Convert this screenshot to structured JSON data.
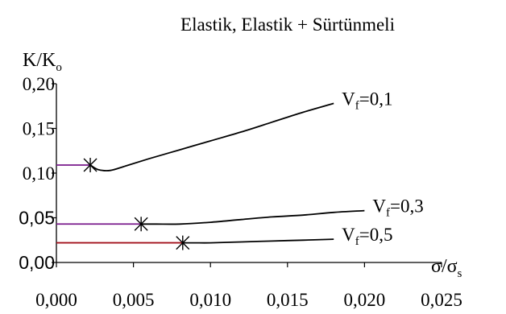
{
  "chart_data": {
    "type": "line",
    "title": "Elastik, Elastik + Sürtünmeli",
    "ylabel": {
      "main": "K/K",
      "sub": "o"
    },
    "xlabel": {
      "numerator": "σ/σ",
      "numerator_sub": "s"
    },
    "xlim": [
      0,
      0.025
    ],
    "ylim": [
      0,
      0.2
    ],
    "x_ticks": [
      {
        "value": 0.0,
        "label": "0,000"
      },
      {
        "value": 0.005,
        "label": "0,005"
      },
      {
        "value": 0.01,
        "label": "0,010"
      },
      {
        "value": 0.015,
        "label": "0,015"
      },
      {
        "value": 0.02,
        "label": "0,020"
      },
      {
        "value": 0.025,
        "label": "0,025"
      }
    ],
    "y_ticks": [
      {
        "value": 0.0,
        "label": "0,00"
      },
      {
        "value": 0.05,
        "label": "0,05"
      },
      {
        "value": 0.1,
        "label": "0,10"
      },
      {
        "value": 0.15,
        "label": "0,15"
      },
      {
        "value": 0.2,
        "label": "0,20"
      }
    ],
    "series": [
      {
        "label_main": "V",
        "label_sub": "f",
        "label_rest": "=0,1",
        "initial_color": "#7a1a8c",
        "initial_segment": [
          [
            0.0,
            0.109
          ],
          [
            0.0022,
            0.109
          ]
        ],
        "marker": [
          0.0022,
          0.109
        ],
        "curve": [
          [
            0.0022,
            0.109
          ],
          [
            0.0027,
            0.104
          ],
          [
            0.0035,
            0.103
          ],
          [
            0.0045,
            0.108
          ],
          [
            0.006,
            0.116
          ],
          [
            0.008,
            0.126
          ],
          [
            0.01,
            0.136
          ],
          [
            0.012,
            0.146
          ],
          [
            0.014,
            0.157
          ],
          [
            0.016,
            0.168
          ],
          [
            0.018,
            0.178
          ]
        ]
      },
      {
        "label_main": "V",
        "label_sub": "f",
        "label_rest": "=0,3",
        "initial_color": "#7a1a8c",
        "initial_segment": [
          [
            0.0,
            0.043
          ],
          [
            0.0055,
            0.043
          ]
        ],
        "marker": [
          0.0055,
          0.043
        ],
        "curve": [
          [
            0.0055,
            0.043
          ],
          [
            0.0065,
            0.043
          ],
          [
            0.008,
            0.043
          ],
          [
            0.01,
            0.045
          ],
          [
            0.012,
            0.048
          ],
          [
            0.014,
            0.051
          ],
          [
            0.016,
            0.053
          ],
          [
            0.018,
            0.056
          ],
          [
            0.02,
            0.058
          ]
        ]
      },
      {
        "label_main": "V",
        "label_sub": "f",
        "label_rest": "=0,5",
        "initial_color": "#a3101b",
        "initial_segment": [
          [
            0.0,
            0.022
          ],
          [
            0.0082,
            0.022
          ]
        ],
        "marker": [
          0.0082,
          0.022
        ],
        "curve": [
          [
            0.0082,
            0.022
          ],
          [
            0.009,
            0.022
          ],
          [
            0.01,
            0.022
          ],
          [
            0.012,
            0.023
          ],
          [
            0.014,
            0.024
          ],
          [
            0.016,
            0.025
          ],
          [
            0.018,
            0.026
          ]
        ]
      }
    ]
  }
}
